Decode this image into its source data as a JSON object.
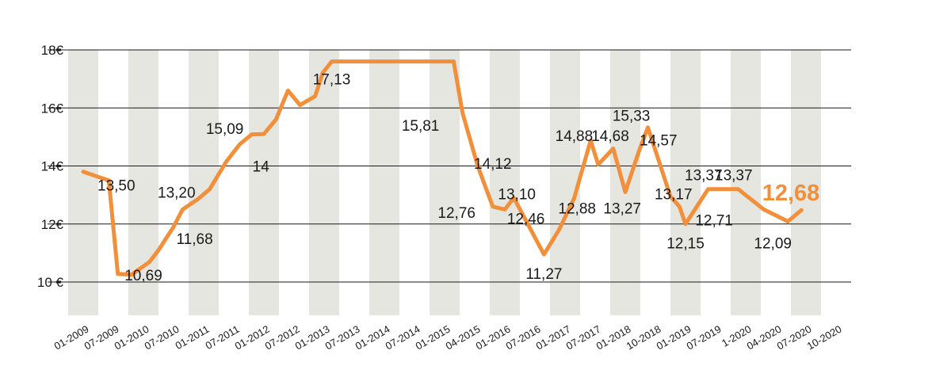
{
  "chart_data": {
    "type": "line",
    "title": "",
    "xlabel": "",
    "ylabel": "",
    "ylim": [
      10,
      18
    ],
    "y_ticks": [
      "10 €",
      "12€",
      "14€",
      "16€",
      "18€"
    ],
    "x_tick_labels": [
      "01-2009",
      "07-2009",
      "01-2010",
      "07-2010",
      "01-2011",
      "07-2011",
      "01-2012",
      "07-2012",
      "01-2013",
      "07-2013",
      "01-2014",
      "07-2014",
      "01-2015",
      "04-2015",
      "01-2016",
      "07-2016",
      "01-2017",
      "07-2017",
      "01-2018",
      "10-2018",
      "01-2019",
      "07-2019",
      "1-2020",
      "04-2020",
      "07-2020",
      "10-2020"
    ],
    "grid": true,
    "background_bands": "alternating grey columns",
    "line_color": "#f18f3b",
    "band_color": "#e6e6e1",
    "series": [
      {
        "points": [
          {
            "x": 0.0,
            "y": 13.8
          },
          {
            "x": 0.85,
            "y": 13.5
          },
          {
            "x": 1.15,
            "y": 10.28
          },
          {
            "x": 1.6,
            "y": 10.25
          },
          {
            "x": 2.2,
            "y": 10.69
          },
          {
            "x": 2.5,
            "y": 11.1
          },
          {
            "x": 3.0,
            "y": 11.9
          },
          {
            "x": 3.3,
            "y": 12.5
          },
          {
            "x": 3.8,
            "y": 12.85
          },
          {
            "x": 4.2,
            "y": 13.2
          },
          {
            "x": 4.75,
            "y": 14.15
          },
          {
            "x": 5.2,
            "y": 14.75
          },
          {
            "x": 5.6,
            "y": 15.09
          },
          {
            "x": 6.0,
            "y": 15.1
          },
          {
            "x": 6.4,
            "y": 15.6
          },
          {
            "x": 6.8,
            "y": 16.6
          },
          {
            "x": 7.2,
            "y": 16.1
          },
          {
            "x": 7.7,
            "y": 16.4
          },
          {
            "x": 7.95,
            "y": 17.2
          },
          {
            "x": 8.25,
            "y": 17.6
          },
          {
            "x": 12.3,
            "y": 17.6
          },
          {
            "x": 12.6,
            "y": 15.81
          },
          {
            "x": 13.1,
            "y": 14.0
          },
          {
            "x": 13.6,
            "y": 12.6
          },
          {
            "x": 14.0,
            "y": 12.5
          },
          {
            "x": 14.3,
            "y": 12.9
          },
          {
            "x": 15.3,
            "y": 10.95
          },
          {
            "x": 15.8,
            "y": 11.8
          },
          {
            "x": 16.3,
            "y": 12.88
          },
          {
            "x": 16.85,
            "y": 14.88
          },
          {
            "x": 17.1,
            "y": 14.05
          },
          {
            "x": 17.6,
            "y": 14.6
          },
          {
            "x": 18.0,
            "y": 13.1
          },
          {
            "x": 18.45,
            "y": 14.5
          },
          {
            "x": 18.75,
            "y": 15.33
          },
          {
            "x": 19.5,
            "y": 12.95
          },
          {
            "x": 19.8,
            "y": 12.6
          },
          {
            "x": 20.0,
            "y": 12.0
          },
          {
            "x": 20.5,
            "y": 12.8
          },
          {
            "x": 20.75,
            "y": 13.2
          },
          {
            "x": 21.75,
            "y": 13.2
          },
          {
            "x": 22.6,
            "y": 12.5
          },
          {
            "x": 23.4,
            "y": 12.09
          },
          {
            "x": 23.85,
            "y": 12.48
          }
        ]
      }
    ],
    "annotations": [
      {
        "text": "13,50",
        "x": 1.1,
        "y": 13.35
      },
      {
        "text": "10,69",
        "x": 2.0,
        "y": 10.25
      },
      {
        "text": "11,68",
        "x": 3.7,
        "y": 11.5
      },
      {
        "text": "13,20",
        "x": 3.1,
        "y": 13.1
      },
      {
        "text": "15,09",
        "x": 4.7,
        "y": 15.3
      },
      {
        "text": "14",
        "x": 5.9,
        "y": 14.0
      },
      {
        "text": "17,13",
        "x": 8.25,
        "y": 17.0
      },
      {
        "text": "15,81",
        "x": 11.2,
        "y": 15.4
      },
      {
        "text": "14,12",
        "x": 13.6,
        "y": 14.1
      },
      {
        "text": "12,76",
        "x": 12.4,
        "y": 12.4
      },
      {
        "text": "13,10",
        "x": 14.4,
        "y": 13.05
      },
      {
        "text": "12,46",
        "x": 14.7,
        "y": 12.2
      },
      {
        "text": "11,27",
        "x": 15.3,
        "y": 10.3
      },
      {
        "text": "14,88",
        "x": 16.3,
        "y": 15.05
      },
      {
        "text": "12,88",
        "x": 16.4,
        "y": 12.55
      },
      {
        "text": "14,68",
        "x": 17.5,
        "y": 15.05
      },
      {
        "text": "13,27",
        "x": 17.9,
        "y": 12.55
      },
      {
        "text": "15,33",
        "x": 18.2,
        "y": 15.75
      },
      {
        "text": "14,57",
        "x": 19.1,
        "y": 14.9
      },
      {
        "text": "13,17",
        "x": 19.6,
        "y": 13.05
      },
      {
        "text": "12,15",
        "x": 20.0,
        "y": 11.35
      },
      {
        "text": "13,37",
        "x": 20.6,
        "y": 13.7
      },
      {
        "text": "13,37",
        "x": 21.6,
        "y": 13.7
      },
      {
        "text": "12,71",
        "x": 20.95,
        "y": 12.15
      },
      {
        "text": "12,09",
        "x": 22.9,
        "y": 11.35
      },
      {
        "text": "12,68",
        "x": 23.5,
        "y": 13.0,
        "highlight": true
      }
    ]
  }
}
